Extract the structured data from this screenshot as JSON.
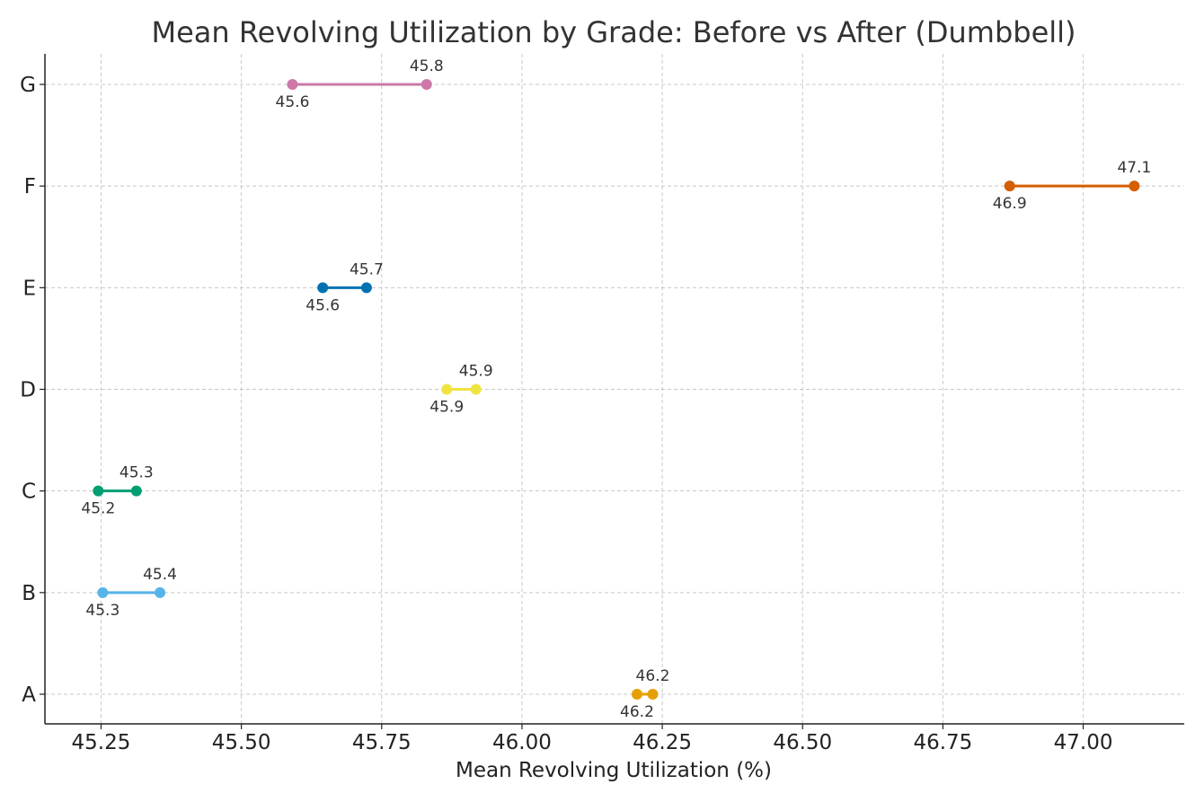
{
  "chart_data": {
    "type": "dumbbell",
    "title": "Mean Revolving Utilization by Grade: Before vs After (Dumbbell)",
    "xlabel": "Mean Revolving Utilization (%)",
    "ylabel": "",
    "xlim": [
      45.15,
      47.18
    ],
    "x_ticks": [
      45.25,
      45.5,
      45.75,
      46.0,
      46.25,
      46.5,
      46.75,
      47.0
    ],
    "x_tick_labels": [
      "45.25",
      "45.50",
      "45.75",
      "46.00",
      "46.25",
      "46.50",
      "46.75",
      "47.00"
    ],
    "categories": [
      "A",
      "B",
      "C",
      "D",
      "E",
      "F",
      "G"
    ],
    "grid": true,
    "legend": "none",
    "rows": [
      {
        "category": "A",
        "before": 46.205,
        "after": 46.233,
        "before_label": "46.2",
        "after_label": "46.2",
        "color": "#E69F00"
      },
      {
        "category": "B",
        "before": 45.253,
        "after": 45.355,
        "before_label": "45.3",
        "after_label": "45.4",
        "color": "#56B4E9"
      },
      {
        "category": "C",
        "before": 45.245,
        "after": 45.313,
        "before_label": "45.2",
        "after_label": "45.3",
        "color": "#009E73"
      },
      {
        "category": "D",
        "before": 45.866,
        "after": 45.918,
        "before_label": "45.9",
        "after_label": "45.9",
        "color": "#F0E442"
      },
      {
        "category": "E",
        "before": 45.645,
        "after": 45.723,
        "before_label": "45.6",
        "after_label": "45.7",
        "color": "#0072B2"
      },
      {
        "category": "F",
        "before": 46.869,
        "after": 47.091,
        "before_label": "46.9",
        "after_label": "47.1",
        "color": "#D55E00"
      },
      {
        "category": "G",
        "before": 45.591,
        "after": 45.83,
        "before_label": "45.6",
        "after_label": "45.8",
        "color": "#CC79A7"
      }
    ]
  }
}
